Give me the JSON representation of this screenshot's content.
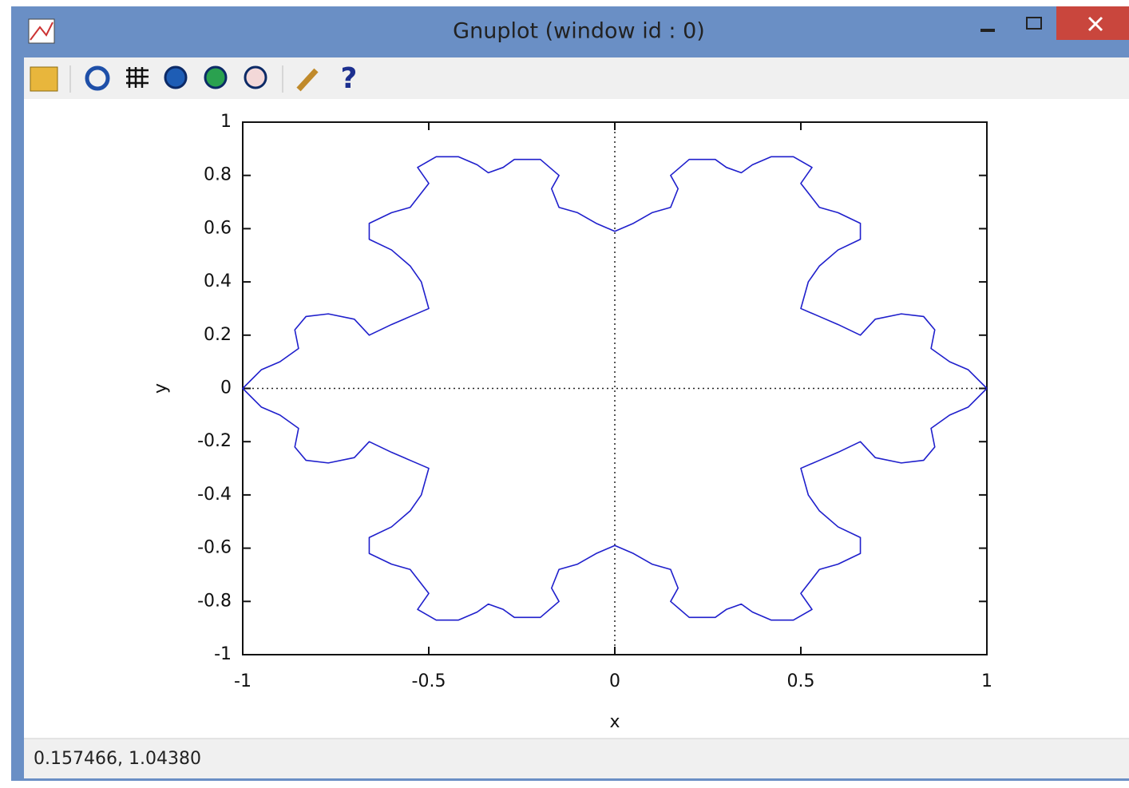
{
  "window": {
    "title": "Gnuplot (window id : 0)"
  },
  "status_bar": {
    "text": "0.157466,  1.04380"
  },
  "chart_data": {
    "type": "line",
    "xlabel": "x",
    "ylabel": "y",
    "xlim": [
      -1,
      1
    ],
    "ylim": [
      -1,
      1
    ],
    "xticks": [
      -1,
      -0.5,
      0,
      0.5,
      1
    ],
    "yticks": [
      -1,
      -0.8,
      -0.6,
      -0.4,
      -0.2,
      0,
      0.2,
      0.4,
      0.6,
      0.8,
      1
    ],
    "zeroaxis": true,
    "x": [
      1,
      0.95,
      0.9,
      0.85,
      0.86,
      0.83,
      0.77,
      0.7,
      0.66,
      0.6,
      0.55,
      0.5,
      0.52,
      0.55,
      0.6,
      0.66,
      0.66,
      0.6,
      0.55,
      0.5,
      0.53,
      0.48,
      0.42,
      0.37,
      0.34,
      0.3,
      0.27,
      0.2,
      0.15,
      0.17,
      0.15,
      0.1,
      0.05,
      0,
      -0.05,
      -0.1,
      -0.15,
      -0.17,
      -0.15,
      -0.2,
      -0.27,
      -0.3,
      -0.34,
      -0.37,
      -0.42,
      -0.48,
      -0.53,
      -0.5,
      -0.55,
      -0.6,
      -0.66,
      -0.66,
      -0.6,
      -0.55,
      -0.52,
      -0.5,
      -0.55,
      -0.6,
      -0.66,
      -0.7,
      -0.77,
      -0.83,
      -0.86,
      -0.85,
      -0.9,
      -0.95,
      -1,
      -0.95,
      -0.9,
      -0.85,
      -0.86,
      -0.83,
      -0.77,
      -0.7,
      -0.66,
      -0.6,
      -0.55,
      -0.5,
      -0.52,
      -0.55,
      -0.6,
      -0.66,
      -0.66,
      -0.6,
      -0.55,
      -0.5,
      -0.53,
      -0.48,
      -0.42,
      -0.37,
      -0.34,
      -0.3,
      -0.27,
      -0.2,
      -0.15,
      -0.17,
      -0.15,
      -0.1,
      -0.05,
      0,
      0.05,
      0.1,
      0.15,
      0.17,
      0.15,
      0.2,
      0.27,
      0.3,
      0.34,
      0.37,
      0.42,
      0.48,
      0.53,
      0.5,
      0.55,
      0.6,
      0.66,
      0.66,
      0.6,
      0.55,
      0.52,
      0.5,
      0.55,
      0.6,
      0.66,
      0.7,
      0.77,
      0.83,
      0.86,
      0.85,
      0.9,
      0.95,
      1
    ],
    "series": [
      {
        "color": "#1f1fcc",
        "values": [
          0,
          0.07,
          0.1,
          0.15,
          0.22,
          0.27,
          0.28,
          0.26,
          0.2,
          0.24,
          0.27,
          0.3,
          0.4,
          0.46,
          0.52,
          0.56,
          0.62,
          0.66,
          0.68,
          0.77,
          0.83,
          0.87,
          0.87,
          0.84,
          0.81,
          0.83,
          0.86,
          0.86,
          0.8,
          0.75,
          0.68,
          0.66,
          0.62,
          0.59,
          0.62,
          0.66,
          0.68,
          0.75,
          0.8,
          0.86,
          0.86,
          0.83,
          0.81,
          0.84,
          0.87,
          0.87,
          0.83,
          0.77,
          0.68,
          0.66,
          0.62,
          0.56,
          0.52,
          0.46,
          0.4,
          0.3,
          0.27,
          0.24,
          0.2,
          0.26,
          0.28,
          0.27,
          0.22,
          0.15,
          0.1,
          0.07,
          0,
          -0.07,
          -0.1,
          -0.15,
          -0.22,
          -0.27,
          -0.28,
          -0.26,
          -0.2,
          -0.24,
          -0.27,
          -0.3,
          -0.4,
          -0.46,
          -0.52,
          -0.56,
          -0.62,
          -0.66,
          -0.68,
          -0.77,
          -0.83,
          -0.87,
          -0.87,
          -0.84,
          -0.81,
          -0.83,
          -0.86,
          -0.86,
          -0.8,
          -0.75,
          -0.68,
          -0.66,
          -0.62,
          -0.59,
          -0.62,
          -0.66,
          -0.68,
          -0.75,
          -0.8,
          -0.86,
          -0.86,
          -0.83,
          -0.81,
          -0.84,
          -0.87,
          -0.87,
          -0.83,
          -0.77,
          -0.68,
          -0.66,
          -0.62,
          -0.56,
          -0.52,
          -0.46,
          -0.4,
          -0.3,
          -0.27,
          -0.24,
          -0.2,
          -0.26,
          -0.28,
          -0.27,
          -0.22,
          -0.15,
          -0.1,
          -0.07,
          0
        ]
      }
    ]
  }
}
